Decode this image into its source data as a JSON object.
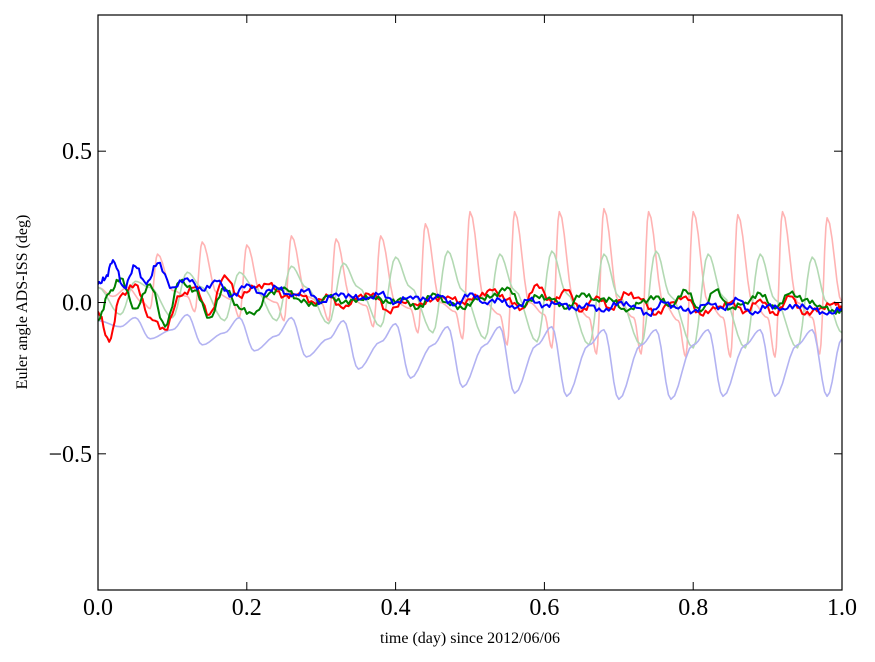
{
  "chart_data": {
    "type": "line",
    "title": "",
    "xlabel": "time (day) since 2012/06/06",
    "ylabel": "Euler angle ADS-ISS (deg)",
    "xlim": [
      0.0,
      1.0
    ],
    "ylim": [
      -0.95,
      0.95
    ],
    "xticks": [
      0.0,
      0.2,
      0.4,
      0.6,
      0.8,
      1.0
    ],
    "xtick_labels": [
      "0.0",
      "0.2",
      "0.4",
      "0.6",
      "0.8",
      "1.0"
    ],
    "yticks": [
      0.5,
      0.0,
      -0.5
    ],
    "ytick_labels": [
      "0.5",
      "0.0",
      "−0.5"
    ],
    "grid": false,
    "legend": "none",
    "series": [
      {
        "color": "#ffb3b3",
        "x": [
          0.0,
          0.02,
          0.04,
          0.06,
          0.07,
          0.08,
          0.1,
          0.12,
          0.13,
          0.14,
          0.16,
          0.18,
          0.19,
          0.2,
          0.22,
          0.24,
          0.25,
          0.26,
          0.28,
          0.3,
          0.31,
          0.32,
          0.34,
          0.36,
          0.37,
          0.38,
          0.4,
          0.42,
          0.43,
          0.44,
          0.46,
          0.48,
          0.49,
          0.5,
          0.52,
          0.54,
          0.55,
          0.56,
          0.58,
          0.6,
          0.61,
          0.62,
          0.64,
          0.66,
          0.67,
          0.68,
          0.7,
          0.72,
          0.73,
          0.74,
          0.76,
          0.78,
          0.79,
          0.8,
          0.82,
          0.84,
          0.85,
          0.86,
          0.88,
          0.9,
          0.91,
          0.92,
          0.94,
          0.96,
          0.97,
          0.98,
          1.0
        ],
        "y": [
          0.05,
          0.02,
          0.05,
          0.0,
          -0.02,
          0.16,
          0.04,
          0.02,
          -0.03,
          0.2,
          0.03,
          0.01,
          -0.05,
          0.19,
          0.02,
          0.0,
          -0.06,
          0.22,
          0.02,
          0.0,
          -0.06,
          0.21,
          0.01,
          -0.01,
          -0.08,
          0.22,
          0.0,
          -0.02,
          -0.1,
          0.26,
          0.0,
          -0.03,
          -0.12,
          0.3,
          0.0,
          -0.04,
          -0.14,
          0.3,
          0.0,
          -0.04,
          -0.15,
          0.3,
          0.0,
          -0.05,
          -0.17,
          0.31,
          0.0,
          -0.05,
          -0.17,
          0.3,
          0.0,
          -0.06,
          -0.18,
          0.3,
          0.0,
          -0.05,
          -0.18,
          0.29,
          0.0,
          -0.05,
          -0.18,
          0.3,
          0.0,
          -0.05,
          -0.17,
          0.28,
          0.0
        ]
      },
      {
        "color": "#b3d9b3",
        "x": [
          0.0,
          0.03,
          0.05,
          0.07,
          0.1,
          0.12,
          0.14,
          0.17,
          0.19,
          0.21,
          0.24,
          0.26,
          0.28,
          0.31,
          0.33,
          0.35,
          0.38,
          0.4,
          0.42,
          0.45,
          0.47,
          0.49,
          0.52,
          0.54,
          0.56,
          0.59,
          0.61,
          0.63,
          0.66,
          0.68,
          0.7,
          0.73,
          0.75,
          0.77,
          0.8,
          0.82,
          0.84,
          0.87,
          0.89,
          0.91,
          0.94,
          0.96,
          0.98,
          1.0
        ],
        "y": [
          0.05,
          -0.04,
          0.07,
          0.05,
          -0.05,
          0.1,
          0.05,
          -0.06,
          0.1,
          0.05,
          -0.06,
          0.12,
          0.05,
          -0.07,
          0.13,
          0.05,
          -0.08,
          0.15,
          0.05,
          -0.1,
          0.17,
          0.04,
          -0.12,
          0.16,
          0.04,
          -0.13,
          0.17,
          0.03,
          -0.14,
          0.16,
          0.02,
          -0.14,
          0.17,
          0.02,
          -0.15,
          0.16,
          0.02,
          -0.15,
          0.16,
          0.01,
          -0.15,
          0.15,
          0.0,
          -0.1
        ]
      },
      {
        "color": "#b3b3f2",
        "x": [
          0.0,
          0.03,
          0.05,
          0.07,
          0.1,
          0.12,
          0.14,
          0.17,
          0.19,
          0.21,
          0.24,
          0.26,
          0.28,
          0.31,
          0.33,
          0.35,
          0.38,
          0.4,
          0.42,
          0.45,
          0.47,
          0.49,
          0.52,
          0.54,
          0.56,
          0.59,
          0.61,
          0.63,
          0.66,
          0.68,
          0.7,
          0.73,
          0.75,
          0.77,
          0.8,
          0.82,
          0.84,
          0.87,
          0.89,
          0.91,
          0.94,
          0.96,
          0.98,
          1.0
        ],
        "y": [
          -0.06,
          -0.08,
          -0.05,
          -0.12,
          -0.09,
          -0.04,
          -0.14,
          -0.1,
          -0.05,
          -0.16,
          -0.11,
          -0.05,
          -0.18,
          -0.12,
          -0.06,
          -0.22,
          -0.13,
          -0.07,
          -0.25,
          -0.14,
          -0.08,
          -0.28,
          -0.14,
          -0.08,
          -0.3,
          -0.14,
          -0.08,
          -0.31,
          -0.14,
          -0.09,
          -0.32,
          -0.14,
          -0.09,
          -0.32,
          -0.14,
          -0.09,
          -0.31,
          -0.14,
          -0.09,
          -0.31,
          -0.14,
          -0.09,
          -0.31,
          -0.12
        ]
      },
      {
        "color": "#ff0000",
        "x": [
          0.0,
          0.015,
          0.03,
          0.05,
          0.07,
          0.09,
          0.11,
          0.13,
          0.15,
          0.17,
          0.19,
          0.21,
          0.23,
          0.25,
          0.27,
          0.29,
          0.31,
          0.33,
          0.35,
          0.37,
          0.39,
          0.41,
          0.43,
          0.45,
          0.47,
          0.49,
          0.51,
          0.53,
          0.55,
          0.57,
          0.59,
          0.61,
          0.63,
          0.65,
          0.67,
          0.69,
          0.71,
          0.73,
          0.75,
          0.77,
          0.79,
          0.81,
          0.83,
          0.85,
          0.87,
          0.89,
          0.91,
          0.93,
          0.95,
          0.97,
          0.99,
          1.0
        ],
        "y": [
          -0.03,
          -0.13,
          0.02,
          0.06,
          -0.05,
          -0.09,
          0.02,
          0.05,
          -0.04,
          0.09,
          0.02,
          0.05,
          0.06,
          0.02,
          0.03,
          0.0,
          0.02,
          -0.02,
          0.02,
          0.03,
          -0.03,
          0.0,
          -0.01,
          0.01,
          0.02,
          0.0,
          0.02,
          0.04,
          0.01,
          -0.02,
          0.06,
          0.0,
          0.04,
          -0.03,
          0.02,
          -0.02,
          0.03,
          0.01,
          -0.04,
          0.0,
          0.02,
          -0.04,
          -0.02,
          0.0,
          -0.03,
          0.01,
          -0.04,
          0.02,
          -0.04,
          -0.02,
          0.0,
          -0.02
        ]
      },
      {
        "color": "#008000",
        "x": [
          0.0,
          0.015,
          0.03,
          0.05,
          0.07,
          0.09,
          0.11,
          0.13,
          0.15,
          0.17,
          0.19,
          0.21,
          0.23,
          0.25,
          0.27,
          0.29,
          0.31,
          0.33,
          0.35,
          0.37,
          0.39,
          0.41,
          0.43,
          0.45,
          0.47,
          0.49,
          0.51,
          0.53,
          0.55,
          0.57,
          0.59,
          0.61,
          0.63,
          0.65,
          0.67,
          0.69,
          0.71,
          0.73,
          0.75,
          0.77,
          0.79,
          0.81,
          0.83,
          0.85,
          0.87,
          0.89,
          0.91,
          0.93,
          0.95,
          0.97,
          0.99,
          1.0
        ],
        "y": [
          -0.06,
          0.03,
          0.08,
          -0.02,
          0.06,
          -0.08,
          0.07,
          0.04,
          -0.05,
          0.05,
          -0.02,
          -0.04,
          0.03,
          0.05,
          0.01,
          -0.01,
          0.02,
          0.0,
          0.01,
          0.02,
          0.0,
          0.01,
          -0.02,
          0.03,
          0.0,
          -0.02,
          0.01,
          0.02,
          0.05,
          -0.01,
          0.02,
          0.01,
          -0.02,
          0.03,
          0.01,
          0.01,
          -0.03,
          0.0,
          0.02,
          -0.01,
          0.04,
          -0.03,
          0.04,
          -0.02,
          0.0,
          0.03,
          -0.02,
          0.03,
          0.01,
          -0.01,
          -0.03,
          -0.03
        ]
      },
      {
        "color": "#0000ff",
        "x": [
          0.0,
          0.01,
          0.02,
          0.035,
          0.05,
          0.065,
          0.08,
          0.1,
          0.12,
          0.14,
          0.16,
          0.18,
          0.2,
          0.22,
          0.24,
          0.26,
          0.28,
          0.3,
          0.32,
          0.34,
          0.36,
          0.38,
          0.4,
          0.42,
          0.44,
          0.46,
          0.48,
          0.5,
          0.52,
          0.54,
          0.56,
          0.58,
          0.6,
          0.62,
          0.64,
          0.66,
          0.68,
          0.7,
          0.72,
          0.74,
          0.76,
          0.78,
          0.8,
          0.82,
          0.84,
          0.86,
          0.88,
          0.9,
          0.92,
          0.94,
          0.96,
          0.98,
          1.0
        ],
        "y": [
          0.06,
          0.08,
          0.14,
          0.05,
          0.12,
          0.06,
          0.13,
          0.05,
          0.08,
          0.04,
          0.07,
          0.02,
          0.06,
          0.03,
          0.05,
          0.02,
          0.04,
          0.0,
          0.03,
          0.02,
          0.01,
          0.03,
          0.0,
          0.02,
          0.01,
          0.02,
          -0.01,
          0.03,
          0.0,
          0.01,
          -0.02,
          0.01,
          -0.01,
          0.0,
          -0.02,
          -0.01,
          -0.03,
          0.0,
          -0.01,
          -0.04,
          0.0,
          -0.02,
          -0.03,
          0.0,
          -0.02,
          0.01,
          -0.04,
          -0.01,
          -0.02,
          -0.01,
          -0.02,
          -0.04,
          -0.02
        ]
      }
    ]
  }
}
